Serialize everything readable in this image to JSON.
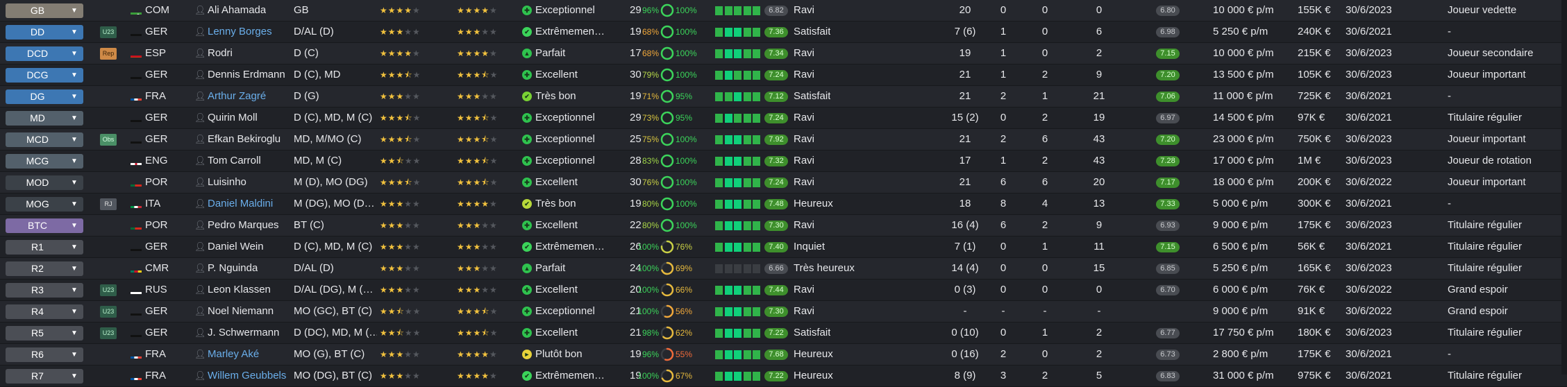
{
  "colors": {
    "stars": "#f2c23e",
    "link": "#6aaeea",
    "good_badge": "#3e8f2c",
    "bar_on": "#30b44a",
    "bar_high": "#10d07a"
  },
  "rows": [
    {
      "pos": "GB",
      "pc": "c-gb",
      "tag": "",
      "flag": "col",
      "nat": "COM",
      "name": "Ali Ahamada",
      "link": false,
      "post": "GB",
      "cur": 4,
      "pot": 4,
      "formIcon": "✚",
      "formColor": "#2fc24e",
      "form": "Exceptionnel",
      "age": "29",
      "pct1": "96%",
      "pct2": "100%",
      "p1c": "#3bd45a",
      "p2c": "#3bd45a",
      "ring": 1.0,
      "bars": [
        1,
        1,
        1,
        1,
        1
      ],
      "note": "6.82",
      "nq": "mid",
      "moral": "Ravi",
      "apps": "20",
      "gls": "0",
      "pd": "0",
      "mt": "0",
      "rat": "6.80",
      "rq": "mid",
      "wage": "10 000 € p/m",
      "val": "155K €",
      "cont": "30/6/2023",
      "role": "Joueur vedette"
    },
    {
      "pos": "DD",
      "pc": "c-def",
      "tag": "u23",
      "tagText": "U23",
      "flag": "ger",
      "nat": "GER",
      "name": "Lenny Borges",
      "link": true,
      "post": "D/AL (D)",
      "cur": 3,
      "pot": 3,
      "formIcon": "✔",
      "formColor": "#3bd45a",
      "form": "Extrêmemen…",
      "age": "19",
      "pct1": "68%",
      "pct2": "100%",
      "p1c": "#f0a73a",
      "p2c": "#3bd45a",
      "ring": 1.0,
      "bars": [
        1,
        2,
        2,
        1,
        1
      ],
      "note": "7.36",
      "nq": "good",
      "moral": "Satisfait",
      "apps": "7 (6)",
      "gls": "1",
      "pd": "0",
      "mt": "6",
      "rat": "6.98",
      "rq": "mid",
      "wage": "5 250 € p/m",
      "val": "240K €",
      "cont": "30/6/2021",
      "role": "-"
    },
    {
      "pos": "DCD",
      "pc": "c-def",
      "tag": "rep",
      "tagText": "Rep",
      "flag": "esp",
      "nat": "ESP",
      "name": "Rodri",
      "link": false,
      "post": "D (C)",
      "cur": 4,
      "pot": 4,
      "formIcon": "▲",
      "formColor": "#2fc24e",
      "form": "Parfait",
      "age": "17",
      "pct1": "68%",
      "pct2": "100%",
      "p1c": "#f0a73a",
      "p2c": "#3bd45a",
      "ring": 1.0,
      "bars": [
        1,
        2,
        2,
        1,
        1
      ],
      "note": "7.34",
      "nq": "good",
      "moral": "Ravi",
      "apps": "19",
      "gls": "1",
      "pd": "0",
      "mt": "2",
      "rat": "7.15",
      "rq": "good",
      "wage": "10 000 € p/m",
      "val": "215K €",
      "cont": "30/6/2023",
      "role": "Joueur secondaire"
    },
    {
      "pos": "DCG",
      "pc": "c-def",
      "tag": "",
      "flag": "ger",
      "nat": "GER",
      "name": "Dennis Erdmann",
      "link": false,
      "post": "D (C), MD",
      "cur": 3.5,
      "pot": 3.5,
      "formIcon": "✚",
      "formColor": "#2fc24e",
      "form": "Excellent",
      "age": "30",
      "pct1": "79%",
      "pct2": "100%",
      "p1c": "#b7d84a",
      "p2c": "#3bd45a",
      "ring": 1.0,
      "bars": [
        1,
        2,
        1,
        1,
        1
      ],
      "note": "7.24",
      "nq": "good",
      "moral": "Ravi",
      "apps": "21",
      "gls": "1",
      "pd": "2",
      "mt": "9",
      "rat": "7.20",
      "rq": "good",
      "wage": "13 500 € p/m",
      "val": "105K €",
      "cont": "30/6/2023",
      "role": "Joueur important"
    },
    {
      "pos": "DG",
      "pc": "c-def",
      "tag": "",
      "flag": "fra",
      "nat": "FRA",
      "name": "Arthur Zagré",
      "link": true,
      "post": "D (G)",
      "cur": 3,
      "pot": 3,
      "formIcon": "✔",
      "formColor": "#7ad234",
      "form": "Très bon",
      "age": "19",
      "pct1": "71%",
      "pct2": "95%",
      "p1c": "#e6b93d",
      "p2c": "#3bd45a",
      "ring": 0.95,
      "bars": [
        1,
        1,
        2,
        1,
        1
      ],
      "note": "7.12",
      "nq": "good",
      "moral": "Satisfait",
      "apps": "21",
      "gls": "2",
      "pd": "1",
      "mt": "21",
      "rat": "7.06",
      "rq": "good",
      "wage": "11 000 € p/m",
      "val": "725K €",
      "cont": "30/6/2021",
      "role": "-"
    },
    {
      "pos": "MD",
      "pc": "c-mid",
      "tag": "",
      "flag": "ger",
      "nat": "GER",
      "name": "Quirin Moll",
      "link": false,
      "post": "D (C), MD, M (C)",
      "cur": 3.5,
      "pot": 3.5,
      "formIcon": "✚",
      "formColor": "#2fc24e",
      "form": "Exceptionnel",
      "age": "29",
      "pct1": "73%",
      "pct2": "95%",
      "p1c": "#d9c640",
      "p2c": "#3bd45a",
      "ring": 0.95,
      "bars": [
        1,
        2,
        1,
        1,
        1
      ],
      "note": "7.24",
      "nq": "good",
      "moral": "Ravi",
      "apps": "15 (2)",
      "gls": "0",
      "pd": "2",
      "mt": "19",
      "rat": "6.97",
      "rq": "mid",
      "wage": "14 500 € p/m",
      "val": "97K €",
      "cont": "30/6/2021",
      "role": "Titulaire régulier"
    },
    {
      "pos": "MCD",
      "pc": "c-mid",
      "tag": "obs",
      "tagText": "Obs",
      "flag": "ger",
      "nat": "GER",
      "name": "Efkan Bekiroglu",
      "link": false,
      "post": "MD, M/MO (C)",
      "cur": 3.5,
      "pot": 3.5,
      "formIcon": "✚",
      "formColor": "#2fc24e",
      "form": "Exceptionnel",
      "age": "25",
      "pct1": "75%",
      "pct2": "100%",
      "p1c": "#d9c640",
      "p2c": "#3bd45a",
      "ring": 1.0,
      "bars": [
        1,
        2,
        2,
        1,
        1
      ],
      "note": "7.92",
      "nq": "good",
      "moral": "Ravi",
      "apps": "21",
      "gls": "2",
      "pd": "6",
      "mt": "43",
      "rat": "7.20",
      "rq": "good",
      "wage": "23 000 € p/m",
      "val": "750K €",
      "cont": "30/6/2023",
      "role": "Joueur important"
    },
    {
      "pos": "MCG",
      "pc": "c-mid",
      "tag": "",
      "flag": "eng",
      "nat": "ENG",
      "name": "Tom Carroll",
      "link": false,
      "post": "MD, M (C)",
      "cur": 2.5,
      "pot": 3.5,
      "formIcon": "✚",
      "formColor": "#2fc24e",
      "form": "Exceptionnel",
      "age": "28",
      "pct1": "83%",
      "pct2": "100%",
      "p1c": "#9fd648",
      "p2c": "#3bd45a",
      "ring": 1.0,
      "bars": [
        1,
        2,
        2,
        1,
        1
      ],
      "note": "7.32",
      "nq": "good",
      "moral": "Ravi",
      "apps": "17",
      "gls": "1",
      "pd": "2",
      "mt": "43",
      "rat": "7.28",
      "rq": "good",
      "wage": "17 000 € p/m",
      "val": "1M €",
      "cont": "30/6/2023",
      "role": "Joueur de rotation"
    },
    {
      "pos": "MOD",
      "pc": "c-midd",
      "tag": "",
      "flag": "por",
      "nat": "POR",
      "name": "Luisinho",
      "link": false,
      "post": "M (D), MO (DG)",
      "cur": 3.5,
      "pot": 3.5,
      "formIcon": "✚",
      "formColor": "#2fc24e",
      "form": "Excellent",
      "age": "30",
      "pct1": "76%",
      "pct2": "100%",
      "p1c": "#c9d045",
      "p2c": "#3bd45a",
      "ring": 1.0,
      "bars": [
        1,
        2,
        2,
        1,
        1
      ],
      "note": "7.24",
      "nq": "good",
      "moral": "Ravi",
      "apps": "21",
      "gls": "6",
      "pd": "6",
      "mt": "20",
      "rat": "7.17",
      "rq": "good",
      "wage": "18 000 € p/m",
      "val": "200K €",
      "cont": "30/6/2022",
      "role": "Joueur important"
    },
    {
      "pos": "MOG",
      "pc": "c-midd",
      "tag": "rj",
      "tagText": "RJ",
      "flag": "ita",
      "nat": "ITA",
      "name": "Daniel Maldini",
      "link": true,
      "post": "M (DG), MO (D…",
      "cur": 3,
      "pot": 4,
      "formIcon": "✔",
      "formColor": "#b7d83a",
      "form": "Très bon",
      "age": "19",
      "pct1": "80%",
      "pct2": "100%",
      "p1c": "#a9d647",
      "p2c": "#3bd45a",
      "ring": 1.0,
      "bars": [
        1,
        2,
        2,
        1,
        1
      ],
      "note": "7.48",
      "nq": "good",
      "moral": "Heureux",
      "apps": "18",
      "gls": "8",
      "pd": "4",
      "mt": "13",
      "rat": "7.33",
      "rq": "good",
      "wage": "5 000 € p/m",
      "val": "300K €",
      "cont": "30/6/2021",
      "role": "-"
    },
    {
      "pos": "BTC",
      "pc": "c-att",
      "tag": "",
      "flag": "por",
      "nat": "POR",
      "name": "Pedro Marques",
      "link": false,
      "post": "BT (C)",
      "cur": 3,
      "pot": 3,
      "formIcon": "✚",
      "formColor": "#2fc24e",
      "form": "Excellent",
      "age": "22",
      "pct1": "80%",
      "pct2": "100%",
      "p1c": "#a9d647",
      "p2c": "#3bd45a",
      "ring": 1.0,
      "bars": [
        1,
        2,
        2,
        1,
        1
      ],
      "note": "7.30",
      "nq": "good",
      "moral": "Ravi",
      "apps": "16 (4)",
      "gls": "6",
      "pd": "2",
      "mt": "9",
      "rat": "6.93",
      "rq": "mid",
      "wage": "9 000 € p/m",
      "val": "175K €",
      "cont": "30/6/2023",
      "role": "Titulaire régulier"
    },
    {
      "pos": "R1",
      "pc": "c-res",
      "tag": "",
      "flag": "ger",
      "nat": "GER",
      "name": "Daniel Wein",
      "link": false,
      "post": "D (C), MD, M (C)",
      "cur": 3,
      "pot": 3,
      "formIcon": "✔",
      "formColor": "#3bd45a",
      "form": "Extrêmemen…",
      "age": "26",
      "pct1": "100%",
      "pct2": "76%",
      "p1c": "#3bd45a",
      "p2c": "#c9d045",
      "ring": 0.76,
      "bars": [
        1,
        2,
        2,
        1,
        1
      ],
      "note": "7.40",
      "nq": "good",
      "moral": "Inquiet",
      "apps": "7 (1)",
      "gls": "0",
      "pd": "1",
      "mt": "11",
      "rat": "7.15",
      "rq": "good",
      "wage": "6 500 € p/m",
      "val": "56K €",
      "cont": "30/6/2021",
      "role": "Titulaire régulier"
    },
    {
      "pos": "R2",
      "pc": "c-res",
      "tag": "",
      "flag": "cmr",
      "nat": "CMR",
      "name": "P. Nguinda",
      "link": false,
      "post": "D/AL (D)",
      "cur": 3,
      "pot": 3,
      "formIcon": "▲",
      "formColor": "#2fc24e",
      "form": "Parfait",
      "age": "24",
      "pct1": "100%",
      "pct2": "69%",
      "p1c": "#3bd45a",
      "p2c": "#e6b93d",
      "ring": 0.69,
      "bars": [
        0,
        0,
        0,
        0,
        0
      ],
      "note": "6.66",
      "nq": "mid",
      "moral": "Très heureux",
      "apps": "14 (4)",
      "gls": "0",
      "pd": "0",
      "mt": "15",
      "rat": "6.85",
      "rq": "mid",
      "wage": "5 250 € p/m",
      "val": "165K €",
      "cont": "30/6/2023",
      "role": "Titulaire régulier"
    },
    {
      "pos": "R3",
      "pc": "c-res",
      "tag": "u23",
      "tagText": "U23",
      "flag": "rus",
      "nat": "RUS",
      "name": "Leon Klassen",
      "link": false,
      "post": "D/AL (DG), M (…",
      "cur": 3,
      "pot": 3,
      "formIcon": "✚",
      "formColor": "#2fc24e",
      "form": "Excellent",
      "age": "20",
      "pct1": "100%",
      "pct2": "66%",
      "p1c": "#3bd45a",
      "p2c": "#e6b93d",
      "ring": 0.66,
      "bars": [
        1,
        2,
        2,
        1,
        1
      ],
      "note": "7.44",
      "nq": "good",
      "moral": "Ravi",
      "apps": "0 (3)",
      "gls": "0",
      "pd": "0",
      "mt": "0",
      "rat": "6.70",
      "rq": "mid",
      "wage": "6 000 € p/m",
      "val": "76K €",
      "cont": "30/6/2022",
      "role": "Grand espoir"
    },
    {
      "pos": "R4",
      "pc": "c-res",
      "tag": "u23",
      "tagText": "U23",
      "flag": "ger",
      "nat": "GER",
      "name": "Noel Niemann",
      "link": false,
      "post": "MO (GC), BT (C)",
      "cur": 2.5,
      "pot": 3.5,
      "formIcon": "✚",
      "formColor": "#2fc24e",
      "form": "Exceptionnel",
      "age": "21",
      "pct1": "100%",
      "pct2": "56%",
      "p1c": "#3bd45a",
      "p2c": "#f0a73a",
      "ring": 0.56,
      "bars": [
        1,
        2,
        2,
        1,
        1
      ],
      "note": "7.30",
      "nq": "good",
      "moral": "Ravi",
      "apps": "-",
      "gls": "-",
      "pd": "-",
      "mt": "-",
      "rat": "",
      "rq": "",
      "wage": "9 000 € p/m",
      "val": "91K €",
      "cont": "30/6/2022",
      "role": "Grand espoir"
    },
    {
      "pos": "R5",
      "pc": "c-res",
      "tag": "u23",
      "tagText": "U23",
      "flag": "ger",
      "nat": "GER",
      "name": "J. Schwermann",
      "link": false,
      "post": "D (DC), MD, M (…",
      "cur": 2.5,
      "pot": 3.5,
      "formIcon": "✚",
      "formColor": "#2fc24e",
      "form": "Excellent",
      "age": "21",
      "pct1": "98%",
      "pct2": "62%",
      "p1c": "#3bd45a",
      "p2c": "#e6b93d",
      "ring": 0.62,
      "bars": [
        1,
        2,
        2,
        1,
        1
      ],
      "note": "7.22",
      "nq": "good",
      "moral": "Satisfait",
      "apps": "0 (10)",
      "gls": "0",
      "pd": "1",
      "mt": "2",
      "rat": "6.77",
      "rq": "mid",
      "wage": "17 750 € p/m",
      "val": "180K €",
      "cont": "30/6/2023",
      "role": "Titulaire régulier"
    },
    {
      "pos": "R6",
      "pc": "c-res",
      "tag": "",
      "flag": "fra",
      "nat": "FRA",
      "name": "Marley Aké",
      "link": true,
      "post": "MO (G), BT (C)",
      "cur": 3,
      "pot": 4,
      "formIcon": "►",
      "formColor": "#e7d23a",
      "form": "Plutôt bon",
      "age": "19",
      "pct1": "96%",
      "pct2": "55%",
      "p1c": "#3bd45a",
      "p2c": "#f06a3a",
      "ring": 0.55,
      "bars": [
        1,
        2,
        2,
        1,
        1
      ],
      "note": "7.68",
      "nq": "good",
      "moral": "Heureux",
      "apps": "0 (16)",
      "gls": "2",
      "pd": "0",
      "mt": "2",
      "rat": "6.73",
      "rq": "mid",
      "wage": "2 800 € p/m",
      "val": "175K €",
      "cont": "30/6/2021",
      "role": "-"
    },
    {
      "pos": "R7",
      "pc": "c-res",
      "tag": "",
      "flag": "fra",
      "nat": "FRA",
      "name": "Willem Geubbels",
      "link": true,
      "post": "MO (DG), BT (C)",
      "cur": 3,
      "pot": 4,
      "formIcon": "✔",
      "formColor": "#3bd45a",
      "form": "Extrêmemen…",
      "age": "19",
      "pct1": "100%",
      "pct2": "67%",
      "p1c": "#3bd45a",
      "p2c": "#e6b93d",
      "ring": 0.67,
      "bars": [
        1,
        2,
        2,
        1,
        1
      ],
      "note": "7.22",
      "nq": "good",
      "moral": "Heureux",
      "apps": "8 (9)",
      "gls": "3",
      "pd": "2",
      "mt": "5",
      "rat": "6.83",
      "rq": "mid",
      "wage": "31 000 € p/m",
      "val": "975K €",
      "cont": "30/6/2021",
      "role": "Titulaire régulier"
    }
  ]
}
